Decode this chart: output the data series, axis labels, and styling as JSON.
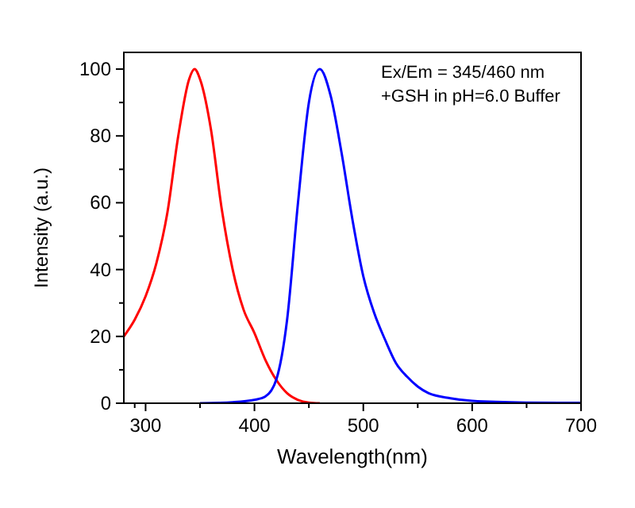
{
  "chart_data": {
    "type": "line",
    "xlabel": "Wavelength(nm)",
    "ylabel": "Intensity (a.u.)",
    "xlim": [
      280,
      700
    ],
    "ylim": [
      0,
      105
    ],
    "xticks": [
      300,
      400,
      500,
      600,
      700
    ],
    "yticks": [
      0,
      20,
      40,
      60,
      80,
      100
    ],
    "grid": false,
    "marker": "none",
    "line_style": "solid",
    "annotations": [
      "Ex/Em = 345/460 nm",
      "+GSH in pH=6.0 Buffer"
    ],
    "series": [
      {
        "color": "#ff0000",
        "x": [
          280,
          290,
          300,
          310,
          320,
          330,
          340,
          345,
          350,
          360,
          370,
          380,
          390,
          400,
          410,
          420,
          430,
          440,
          450,
          460
        ],
        "values": [
          20,
          25,
          32,
          42,
          57,
          80,
          97,
          100,
          97,
          82,
          58,
          40,
          28,
          21,
          13,
          7,
          3,
          1,
          0.2,
          0
        ]
      },
      {
        "color": "#0000ff",
        "x": [
          350,
          380,
          400,
          410,
          420,
          430,
          440,
          450,
          460,
          470,
          480,
          490,
          500,
          510,
          520,
          530,
          540,
          550,
          560,
          580,
          600,
          650,
          700
        ],
        "values": [
          0,
          0.3,
          1,
          2,
          7,
          25,
          60,
          90,
          100,
          92,
          75,
          55,
          38,
          27,
          19,
          12,
          8,
          5,
          3,
          1.5,
          0.7,
          0.2,
          0.1
        ]
      }
    ]
  }
}
